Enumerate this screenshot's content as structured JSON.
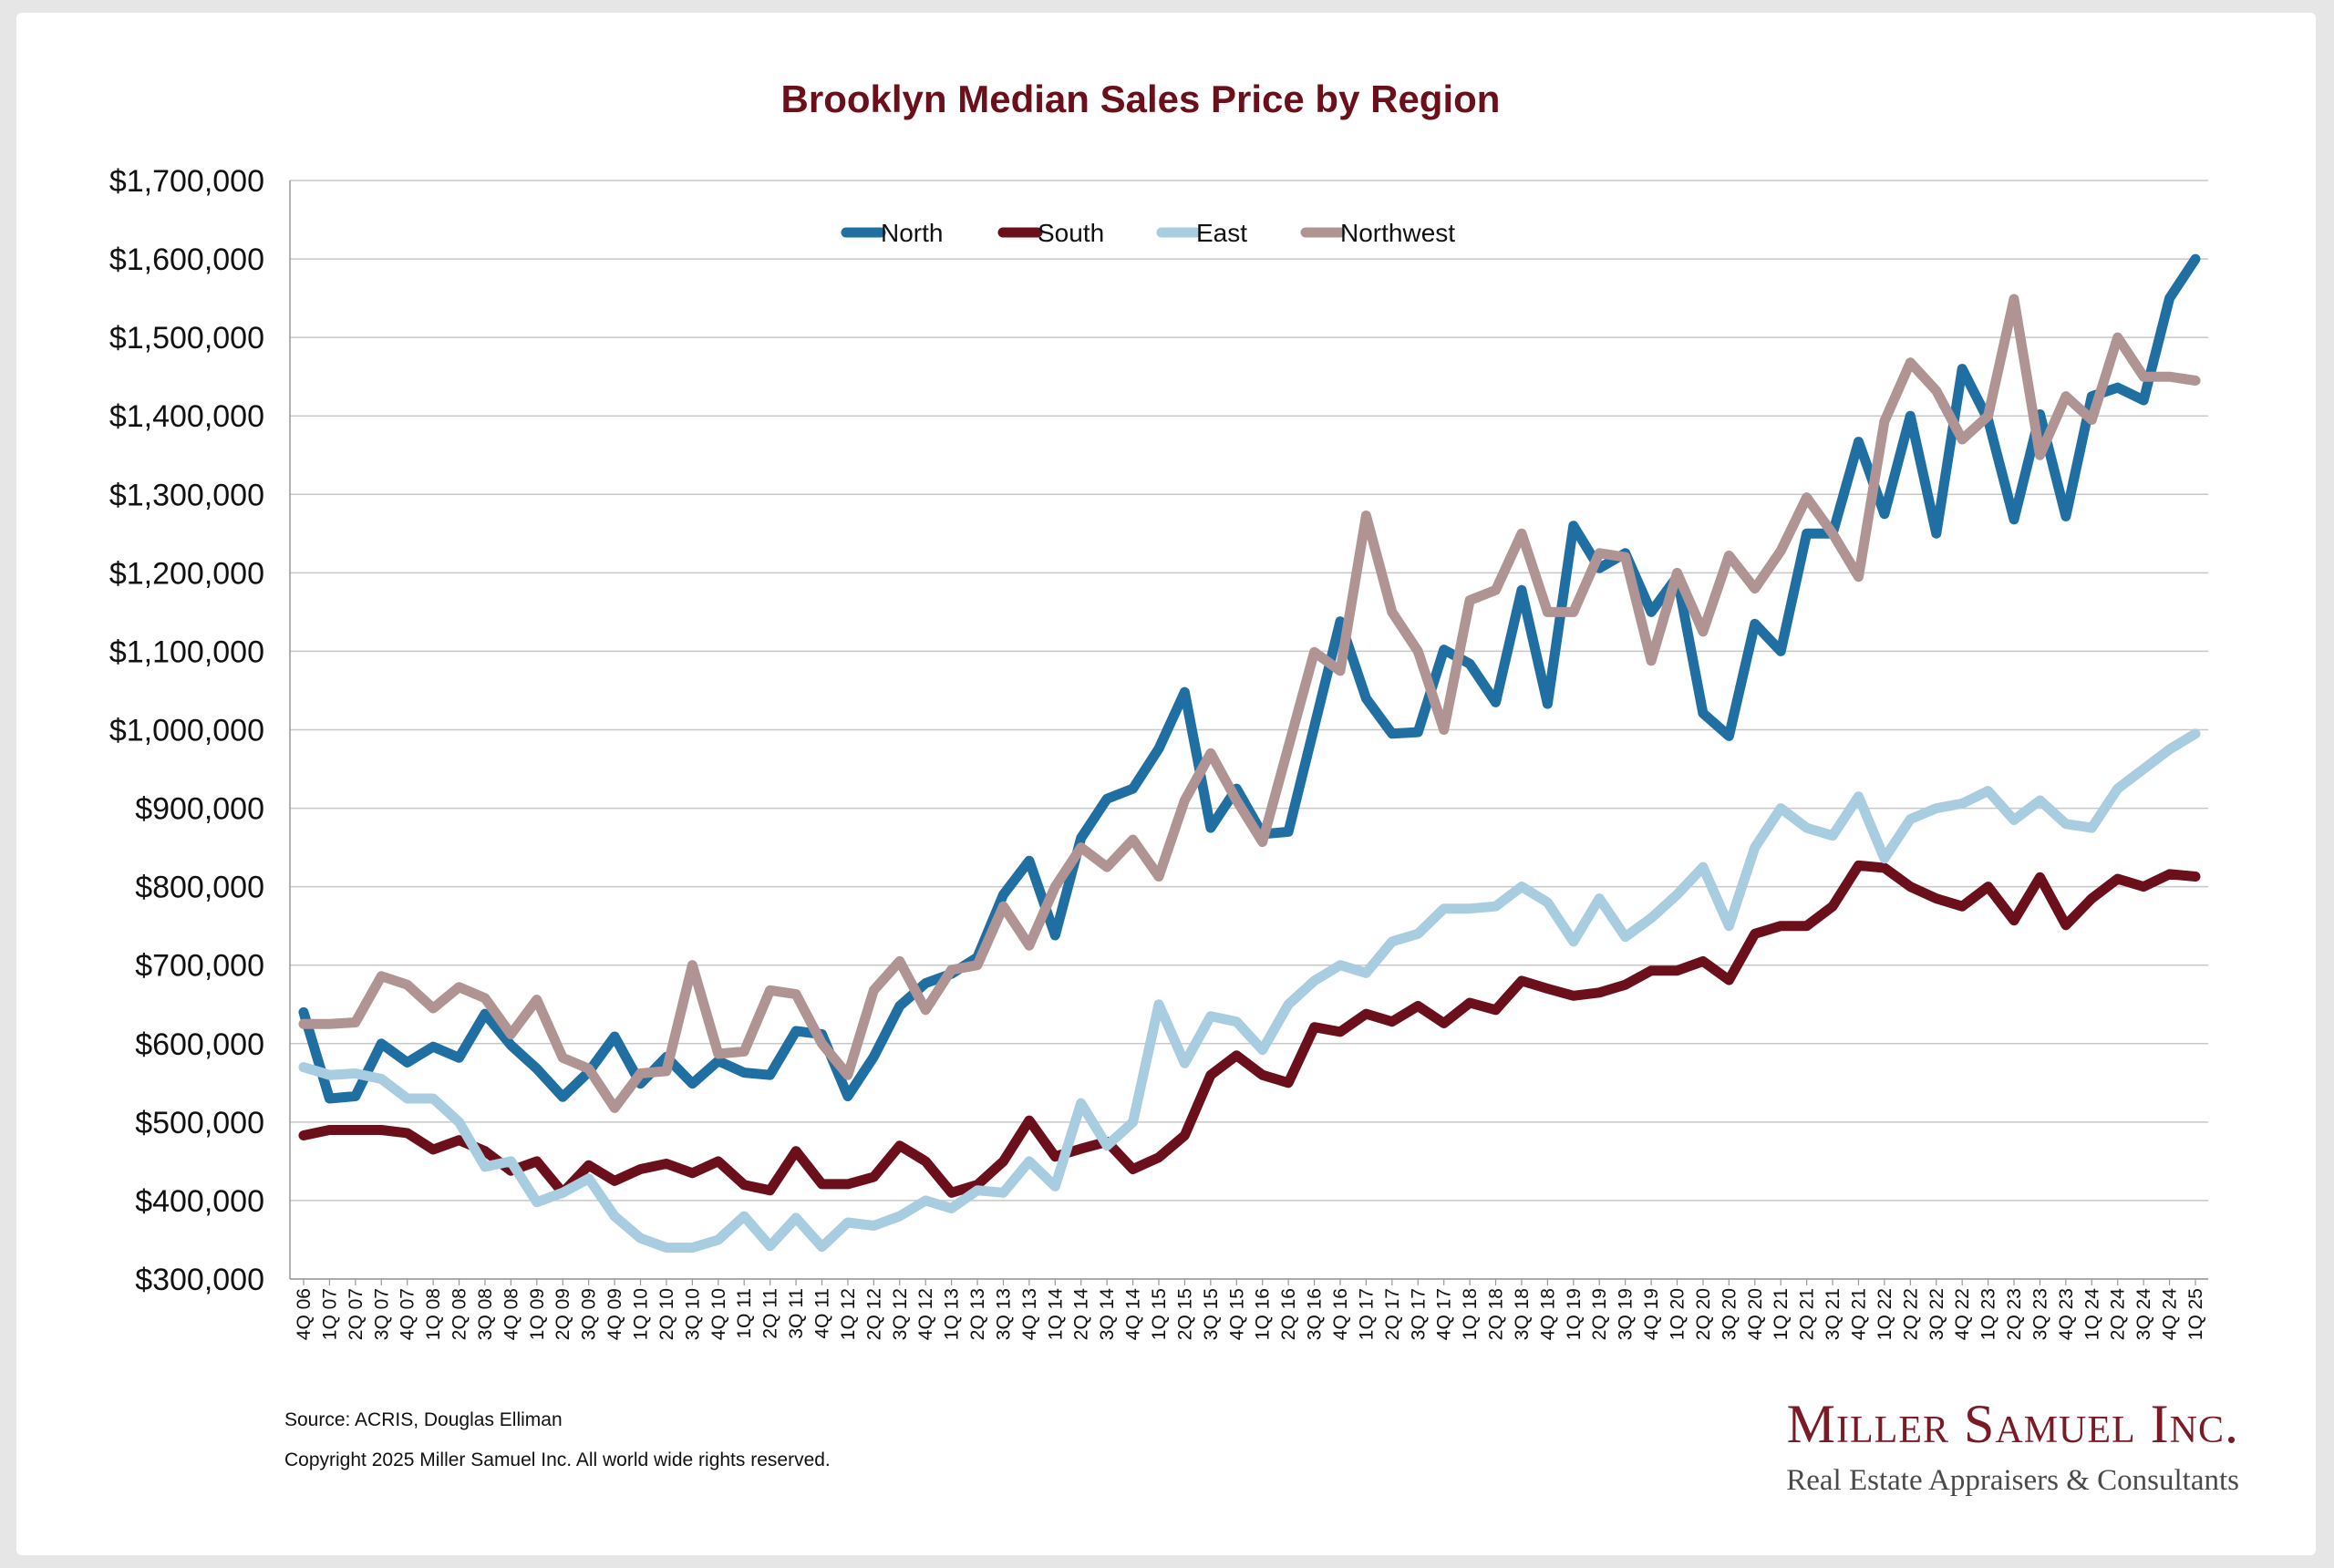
{
  "chart_data": {
    "type": "line",
    "title": "Brooklyn Median Sales Price by Region",
    "xlabel": "",
    "ylabel": "",
    "ylim": [
      300000,
      1700000
    ],
    "yticks": [
      300000,
      400000,
      500000,
      600000,
      700000,
      800000,
      900000,
      1000000,
      1100000,
      1200000,
      1300000,
      1400000,
      1500000,
      1600000,
      1700000
    ],
    "ytick_labels": [
      "$300,000",
      "$400,000",
      "$500,000",
      "$600,000",
      "$700,000",
      "$800,000",
      "$900,000",
      "$1,000,000",
      "$1,100,000",
      "$1,200,000",
      "$1,300,000",
      "$1,400,000",
      "$1,500,000",
      "$1,600,000",
      "$1,700,000"
    ],
    "grid": true,
    "legend_position": "top-center",
    "categories": [
      "4Q 06",
      "1Q 07",
      "2Q 07",
      "3Q 07",
      "4Q 07",
      "1Q 08",
      "2Q 08",
      "3Q 08",
      "4Q 08",
      "1Q 09",
      "2Q 09",
      "3Q 09",
      "4Q 09",
      "1Q 10",
      "2Q 10",
      "3Q 10",
      "4Q 10",
      "1Q 11",
      "2Q 11",
      "3Q 11",
      "4Q 11",
      "1Q 12",
      "2Q 12",
      "3Q 12",
      "4Q 12",
      "1Q 13",
      "2Q 13",
      "3Q 13",
      "4Q 13",
      "1Q 14",
      "2Q 14",
      "3Q 14",
      "4Q 14",
      "1Q 15",
      "2Q 15",
      "3Q 15",
      "4Q 15",
      "1Q 16",
      "2Q 16",
      "3Q 16",
      "4Q 16",
      "1Q 17",
      "2Q 17",
      "3Q 17",
      "4Q 17",
      "1Q 18",
      "2Q 18",
      "3Q 18",
      "4Q 18",
      "1Q 19",
      "2Q 19",
      "3Q 19",
      "4Q 19",
      "1Q 20",
      "2Q 20",
      "3Q 20",
      "4Q 20",
      "1Q 21",
      "2Q 21",
      "3Q 21",
      "4Q 21",
      "1Q 22",
      "2Q 22",
      "3Q 22",
      "4Q 22",
      "1Q 23",
      "2Q 23",
      "3Q 23",
      "4Q 23",
      "1Q 24",
      "2Q 24",
      "3Q 24",
      "4Q 24",
      "1Q 25"
    ],
    "series": [
      {
        "name": "North",
        "color": "#1f6fa3",
        "values": [
          640000,
          530000,
          533000,
          600000,
          576000,
          596000,
          582000,
          638000,
          598000,
          568000,
          532000,
          564000,
          609000,
          549000,
          583000,
          549000,
          578000,
          563000,
          560000,
          616000,
          612000,
          533000,
          583000,
          648000,
          677000,
          689000,
          710000,
          790000,
          833000,
          738000,
          862000,
          912000,
          925000,
          976000,
          1048000,
          875000,
          925000,
          867000,
          870000,
          1004000,
          1138000,
          1040000,
          995000,
          997000,
          1102000,
          1084000,
          1035000,
          1178000,
          1033000,
          1260000,
          1206000,
          1225000,
          1150000,
          1195000,
          1021000,
          992000,
          1135000,
          1100000,
          1250000,
          1250000,
          1367000,
          1275000,
          1400000,
          1250000,
          1460000,
          1395000,
          1268000,
          1402000,
          1272000,
          1425000,
          1436000,
          1420000,
          1550000,
          1600000
        ]
      },
      {
        "name": "South",
        "color": "#6b0f1a",
        "values": [
          483000,
          490000,
          490000,
          490000,
          486000,
          465000,
          477000,
          463000,
          438000,
          450000,
          410000,
          445000,
          425000,
          440000,
          447000,
          435000,
          450000,
          420000,
          413000,
          463000,
          421000,
          421000,
          430000,
          470000,
          450000,
          410000,
          420000,
          450000,
          502000,
          456000,
          466000,
          475000,
          440000,
          455000,
          483000,
          560000,
          585000,
          560000,
          550000,
          621000,
          615000,
          638000,
          628000,
          648000,
          626000,
          652000,
          643000,
          680000,
          670000,
          661000,
          665000,
          675000,
          693000,
          693000,
          705000,
          681000,
          740000,
          750000,
          750000,
          775000,
          827000,
          824000,
          800000,
          785000,
          775000,
          800000,
          757000,
          812000,
          751000,
          785000,
          810000,
          800000,
          816000,
          813000
        ]
      },
      {
        "name": "East",
        "color": "#a8cce0",
        "values": [
          570000,
          560000,
          562000,
          555000,
          530000,
          530000,
          500000,
          443000,
          450000,
          398000,
          410000,
          428000,
          380000,
          352000,
          340000,
          340000,
          350000,
          380000,
          342000,
          378000,
          341000,
          372000,
          368000,
          380000,
          400000,
          390000,
          413000,
          410000,
          450000,
          418000,
          524000,
          470000,
          500000,
          650000,
          575000,
          635000,
          628000,
          592000,
          650000,
          680000,
          700000,
          690000,
          730000,
          740000,
          772000,
          772000,
          775000,
          800000,
          780000,
          730000,
          785000,
          736000,
          760000,
          790000,
          825000,
          750000,
          850000,
          900000,
          875000,
          865000,
          915000,
          836000,
          886000,
          900000,
          906000,
          922000,
          885000,
          910000,
          880000,
          875000,
          925000,
          950000,
          975000,
          995000
        ]
      },
      {
        "name": "Northwest",
        "color": "#b09494",
        "values": [
          625000,
          625000,
          627000,
          686000,
          675000,
          645000,
          672000,
          658000,
          612000,
          656000,
          582000,
          568000,
          518000,
          562000,
          565000,
          700000,
          587000,
          590000,
          668000,
          663000,
          600000,
          560000,
          668000,
          705000,
          643000,
          694000,
          700000,
          775000,
          725000,
          800000,
          850000,
          825000,
          860000,
          813000,
          910000,
          970000,
          910000,
          857000,
          978000,
          1099000,
          1075000,
          1273000,
          1150000,
          1100000,
          1000000,
          1165000,
          1178000,
          1250000,
          1150000,
          1150000,
          1225000,
          1220000,
          1088000,
          1200000,
          1125000,
          1222000,
          1180000,
          1228000,
          1296000,
          1250000,
          1195000,
          1393000,
          1468000,
          1432000,
          1370000,
          1400000,
          1549000,
          1350000,
          1425000,
          1395000,
          1500000,
          1450000,
          1450000,
          1445000
        ]
      }
    ]
  },
  "footer": {
    "source": "Source: ACRIS, Douglas Elliman",
    "copyright": "Copyright 2025 Miller Samuel Inc.  All world wide rights reserved."
  },
  "logo": {
    "name": "Miller Samuel Inc.",
    "tagline": "Real Estate Appraisers & Consultants"
  }
}
